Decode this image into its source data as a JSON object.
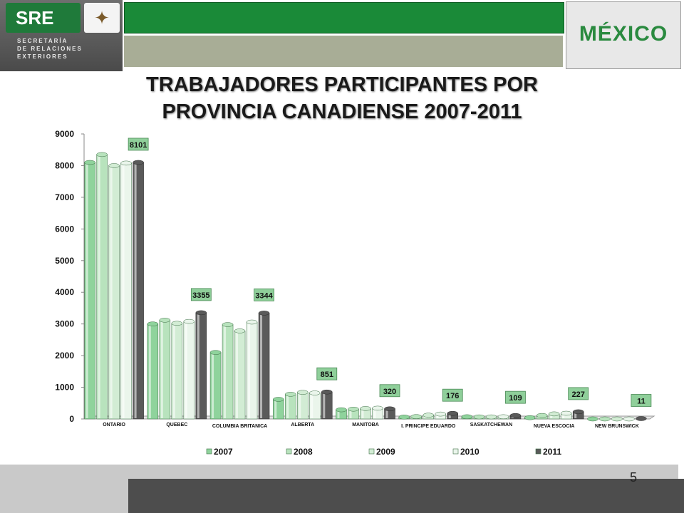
{
  "header": {
    "sre_logo": "SRE",
    "secretaria_lines": [
      "SECRETARÍA",
      "DE RELACIONES",
      "EXTERIORES"
    ],
    "country": "MÉXICO"
  },
  "title_lines": [
    "TRABAJADORES  PARTICIPANTES POR",
    "PROVINCIA CANADIENSE 2007-2011"
  ],
  "page_number": "5",
  "colors": {
    "header_green": "#1a8a38",
    "header_gray": "#a8ad96",
    "label_box": "#8fcf9a",
    "footer_dark": "#4d4d4d",
    "footer_light": "#c9c9c9"
  },
  "chart_data": {
    "type": "bar",
    "style": "3d-cylinder",
    "categories": [
      "ONTARIO",
      "QUEBEC",
      "COLUMBIA BRITANICA",
      "ALBERTA",
      "MANITOBA",
      "I. PRINCIPE EDUARDO",
      "SASKATCHEWAN",
      "NUEVA ESCOCIA",
      "NEW BRUNSWICK"
    ],
    "series": [
      {
        "name": "2007",
        "color": "#8fd39c",
        "values": [
          8100,
          3000,
          2100,
          620,
          290,
          60,
          70,
          40,
          0
        ]
      },
      {
        "name": "2008",
        "color": "#b8e3bd",
        "values": [
          8350,
          3120,
          2980,
          780,
          310,
          75,
          65,
          110,
          0
        ]
      },
      {
        "name": "2009",
        "color": "#d2ecd4",
        "values": [
          8000,
          3020,
          2780,
          840,
          330,
          120,
          65,
          160,
          0
        ]
      },
      {
        "name": "2010",
        "color": "#eaf5eb",
        "values": [
          8080,
          3080,
          3060,
          820,
          340,
          155,
          70,
          180,
          0
        ]
      },
      {
        "name": "2011",
        "color": "#5a5a5a",
        "values": [
          8101,
          3355,
          3344,
          851,
          320,
          176,
          109,
          227,
          11
        ]
      }
    ],
    "data_labels": [
      "8101",
      "3355",
      "3344",
      "851",
      "320",
      "176",
      "109",
      "227",
      "11"
    ],
    "ylim": [
      0,
      9000
    ],
    "yticks": [
      "0",
      "1000",
      "2000",
      "3000",
      "4000",
      "5000",
      "6000",
      "7000",
      "8000",
      "9000"
    ],
    "legend": [
      "2007",
      "2008",
      "2009",
      "2010",
      "2011"
    ],
    "legend_position": "bottom",
    "grid": false
  }
}
